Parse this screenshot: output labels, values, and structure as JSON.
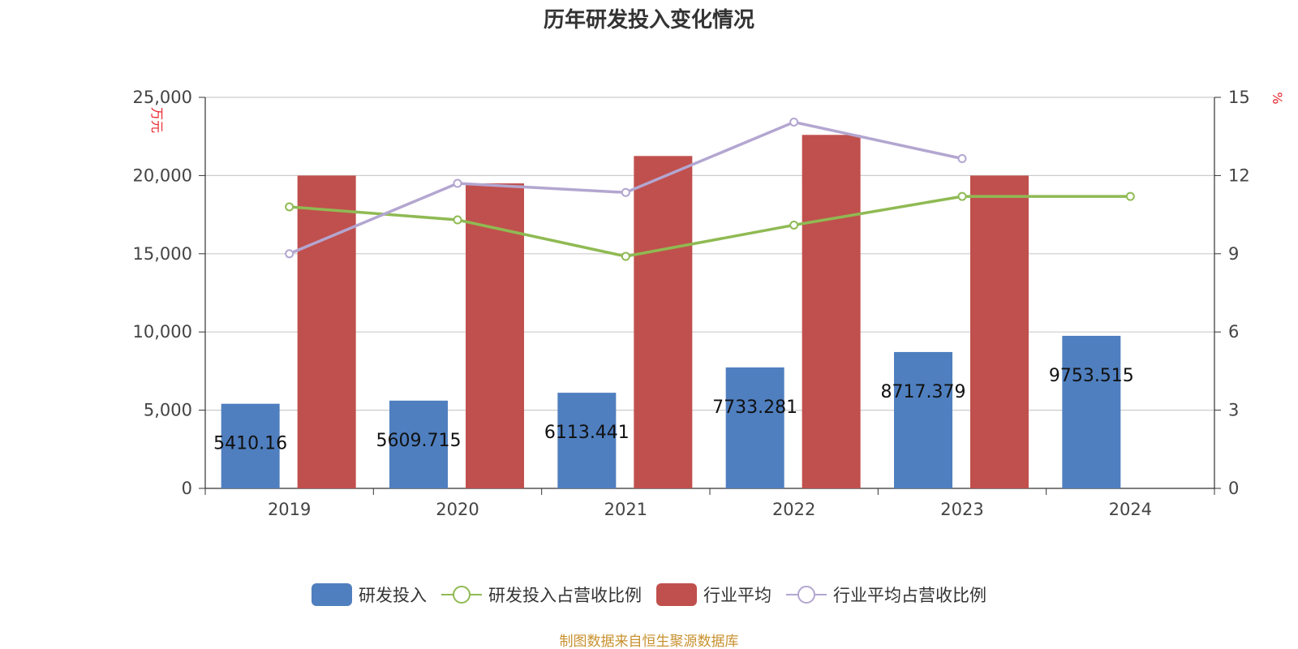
{
  "chart_data": {
    "type": "bar",
    "title": "历年研发投入变化情况",
    "categories": [
      "2019",
      "2020",
      "2021",
      "2022",
      "2023",
      "2024"
    ],
    "y_left": {
      "unit": "万元",
      "ylim": [
        0,
        25000
      ],
      "ticks": [
        "0",
        "5,000",
        "10,000",
        "15,000",
        "20,000",
        "25,000"
      ]
    },
    "y_right": {
      "unit": "%",
      "ylim": [
        0,
        15
      ],
      "ticks": [
        "0",
        "3",
        "6",
        "9",
        "12",
        "15"
      ]
    },
    "grid": true,
    "legend_position": "bottom",
    "series": [
      {
        "name": "研发投入",
        "kind": "bar",
        "axis": "left",
        "color": "#4f7fbf",
        "values": [
          5410.16,
          5609.715,
          6113.441,
          7733.281,
          8717.379,
          9753.515
        ],
        "labels": [
          "5410.16",
          "5609.715",
          "6113.441",
          "7733.281",
          "8717.379",
          "9753.515"
        ]
      },
      {
        "name": "研发投入占营收比例",
        "kind": "line",
        "axis": "right",
        "color": "#8fba53",
        "values": [
          10.8,
          10.3,
          8.9,
          10.1,
          11.2,
          11.2
        ]
      },
      {
        "name": "行业平均",
        "kind": "bar",
        "axis": "left",
        "color": "#c0504d",
        "values": [
          20000,
          19500,
          21250,
          22600,
          20000,
          null
        ]
      },
      {
        "name": "行业平均占营收比例",
        "kind": "line",
        "axis": "right",
        "color": "#b3a6d0",
        "values": [
          9.0,
          11.7,
          11.35,
          14.05,
          12.65,
          null
        ]
      }
    ]
  },
  "source_note": "制图数据来自恒生聚源数据库"
}
